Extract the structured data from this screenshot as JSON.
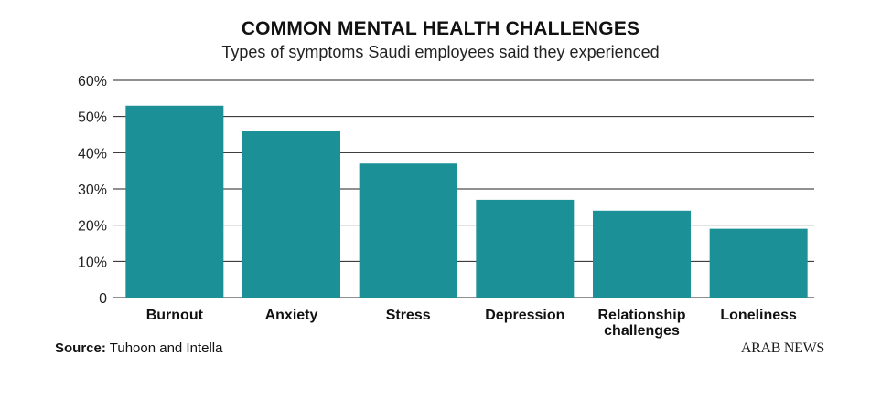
{
  "chart_data": {
    "type": "bar",
    "title": "COMMON MENTAL HEALTH CHALLENGES",
    "subtitle": "Types of symptoms Saudi employees said they experienced",
    "categories": [
      "Burnout",
      "Anxiety",
      "Stress",
      "Depression",
      "Relationship challenges",
      "Loneliness"
    ],
    "category_lines": [
      [
        "Burnout"
      ],
      [
        "Anxiety"
      ],
      [
        "Stress"
      ],
      [
        "Depression"
      ],
      [
        "Relationship",
        "challenges"
      ],
      [
        "Loneliness"
      ]
    ],
    "values": [
      53,
      46,
      37,
      27,
      24,
      19
    ],
    "ylim": [
      0,
      60
    ],
    "yticks": [
      0,
      10,
      20,
      30,
      40,
      50,
      60
    ],
    "ytick_labels": [
      "0",
      "10%",
      "20%",
      "30%",
      "40%",
      "50%",
      "60%"
    ],
    "grid": true,
    "bar_color": "#1b9197"
  },
  "source": {
    "label": "Source:",
    "text": " Tuhoon and Intella"
  },
  "brand": "ARAB NEWS"
}
